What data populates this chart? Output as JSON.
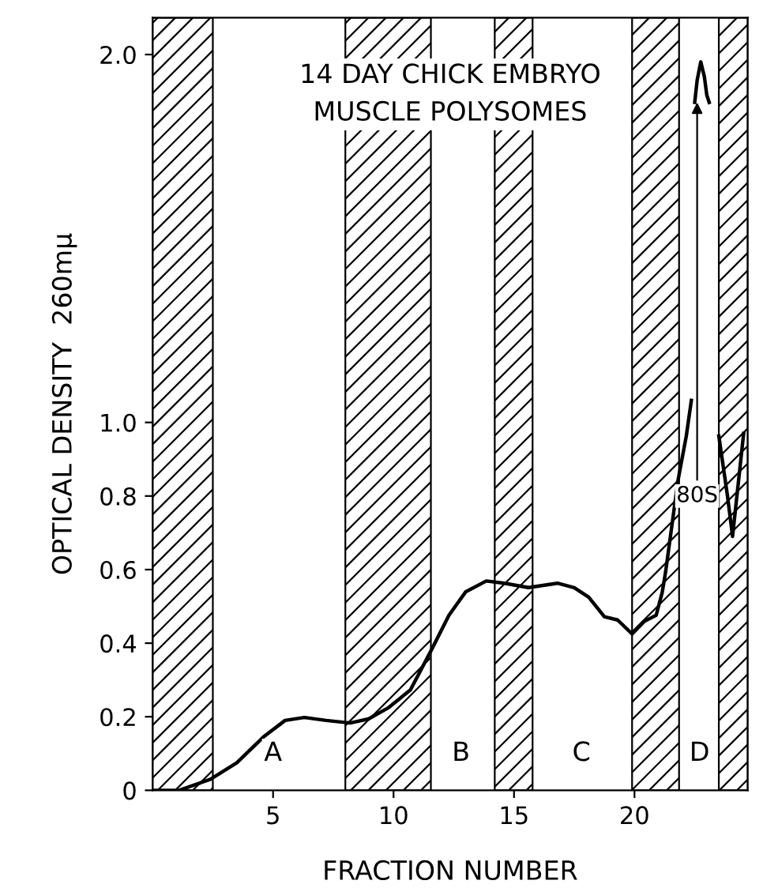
{
  "chart_data": {
    "type": "line",
    "title": "14 DAY CHICK EMBRYO\nMUSCLE POLYSOMES",
    "xlabel": "FRACTION NUMBER",
    "ylabel": "OPTICAL DENSITY  260mμ",
    "x": [
      0,
      1.1,
      2.4,
      3.5,
      4.6,
      5.5,
      6.3,
      7.2,
      8.2,
      8.96,
      9.8,
      10.7,
      11.56,
      12.3,
      13.0,
      13.85,
      14.6,
      15.6,
      16.8,
      17.5,
      18.1,
      18.75,
      19.3,
      19.9,
      20.4,
      20.9,
      21.15,
      21.29,
      21.8,
      22.15,
      22.36,
      22.45,
      22.5,
      22.6,
      22.75,
      22.9,
      23.0,
      23.1,
      23.2,
      23.5,
      23.86,
      24.07,
      24.53
    ],
    "series": [
      {
        "color": "#000000",
        "values": [
          0,
          0,
          0.03,
          0.075,
          0.145,
          0.19,
          0.198,
          0.19,
          0.183,
          0.194,
          0.225,
          0.273,
          0.38,
          0.476,
          0.54,
          0.569,
          0.563,
          0.551,
          0.563,
          0.551,
          0.525,
          0.472,
          0.463,
          0.425,
          0.459,
          0.476,
          0.538,
          0.593,
          0.84,
          0.963,
          1.06,
          null,
          1.87,
          1.93,
          1.98,
          1.94,
          1.89,
          1.87,
          null,
          0.963,
          0.8,
          0.69,
          0.97
        ]
      }
    ],
    "xlim": [
      0,
      24.7
    ],
    "ylim": [
      0,
      2.1
    ],
    "xticks": [
      5,
      10,
      15,
      20
    ],
    "yticks": [
      {
        "value": 0,
        "label": "0"
      },
      {
        "value": 0.2,
        "label": "0.2"
      },
      {
        "value": 0.4,
        "label": "0.4"
      },
      {
        "value": 0.6,
        "label": "0.6"
      },
      {
        "value": 0.8,
        "label": "0.8"
      },
      {
        "value": 1.0,
        "label": "1.0"
      },
      {
        "value": 2.0,
        "label": "2.0"
      }
    ],
    "bands": [
      {
        "axis": "x",
        "from": 0,
        "to": 2.5,
        "color": "#000000"
      },
      {
        "axis": "x",
        "from": 8.0,
        "to": 11.55,
        "color": "#000000"
      },
      {
        "axis": "x",
        "from": 14.2,
        "to": 15.77,
        "color": "#000000"
      },
      {
        "axis": "x",
        "from": 19.9,
        "to": 21.85,
        "color": "#000000"
      },
      {
        "axis": "x",
        "from": 23.5,
        "to": 24.7,
        "color": "#000000"
      }
    ],
    "annotations": [
      {
        "text": "A",
        "x": 5.0,
        "y": 0.1
      },
      {
        "text": "B",
        "x": 12.8,
        "y": 0.1
      },
      {
        "text": "C",
        "x": 17.8,
        "y": 0.1
      },
      {
        "text": "D",
        "x": 22.7,
        "y": 0.1
      },
      {
        "text": "80S",
        "x": 22.6,
        "y": 1.87
      }
    ],
    "grid": false,
    "line_style": "solid",
    "marker": "none"
  }
}
